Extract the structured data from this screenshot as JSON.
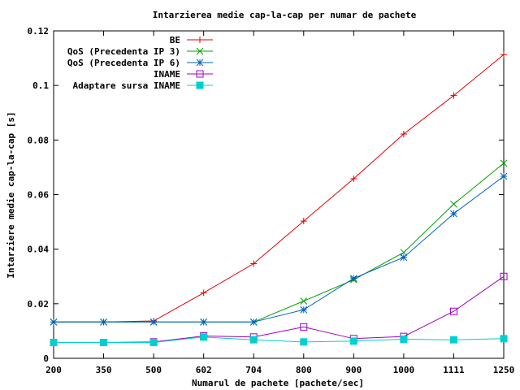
{
  "chart_data": {
    "type": "line",
    "title": "Intarzierea medie cap-la-cap per numar de pachete",
    "xlabel": "Numarul de pachete [pachete/sec]",
    "ylabel": "Intarziere medie cap-la-cap [s]",
    "categories": [
      "200",
      "350",
      "500",
      "602",
      "704",
      "800",
      "900",
      "1000",
      "1111",
      "1250"
    ],
    "ylim": [
      0,
      0.12
    ],
    "yticks": [
      "0",
      "0.02",
      "0.04",
      "0.06",
      "0.08",
      "0.1",
      "0.12"
    ],
    "ytick_values": [
      0,
      0.02,
      0.04,
      0.06,
      0.08,
      0.1,
      0.12
    ],
    "legend_position": "top-left",
    "grid": false,
    "series": [
      {
        "name": "BE",
        "color": "#e00000",
        "marker": "plus",
        "values": [
          0.0133,
          0.0133,
          0.0137,
          0.024,
          0.0347,
          0.0503,
          0.0658,
          0.0822,
          0.0963,
          0.1113
        ]
      },
      {
        "name": "QoS (Precedenta IP 3)",
        "color": "#00a000",
        "marker": "cross",
        "values": [
          0.0133,
          0.0133,
          0.0133,
          0.0133,
          0.0133,
          0.021,
          0.0288,
          0.0388,
          0.0565,
          0.0715
        ]
      },
      {
        "name": "QoS (Precedenta IP 6)",
        "color": "#0060c0",
        "marker": "star",
        "values": [
          0.0133,
          0.0133,
          0.0133,
          0.0133,
          0.0133,
          0.0178,
          0.0293,
          0.037,
          0.053,
          0.0667
        ]
      },
      {
        "name": "INAME",
        "color": "#a000c0",
        "marker": "square-open",
        "values": [
          0.0058,
          0.0058,
          0.006,
          0.0082,
          0.0078,
          0.0115,
          0.0072,
          0.008,
          0.0172,
          0.03
        ]
      },
      {
        "name": "Adaptare sursa INAME",
        "color": "#00d0d0",
        "marker": "square-filled",
        "values": [
          0.0058,
          0.0058,
          0.0058,
          0.0078,
          0.0068,
          0.006,
          0.0063,
          0.007,
          0.0068,
          0.0072
        ]
      }
    ]
  }
}
